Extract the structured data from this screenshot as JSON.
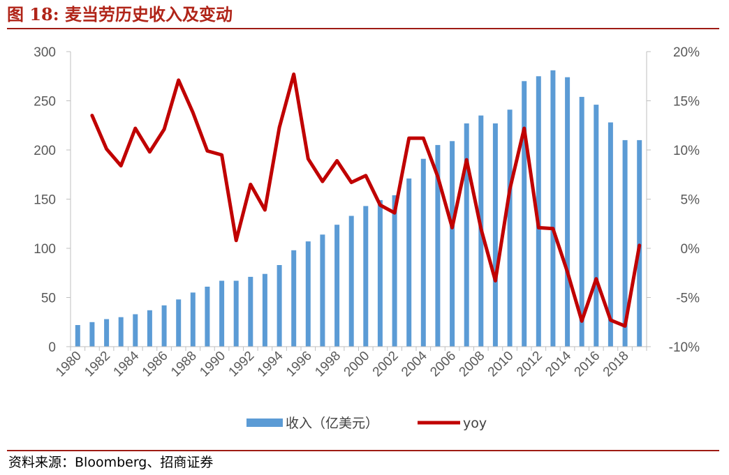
{
  "figure": {
    "title": "图 18:  麦当劳历史收入及变动",
    "source": "资料来源：Bloomberg、招商证券"
  },
  "colors": {
    "bar": "#5b9bd5",
    "line": "#c00000",
    "rule": "#9e1b14",
    "title": "#b02418",
    "axis": "#bfbfbf",
    "tick_text": "#595959"
  },
  "chart_data": {
    "type": "bar+line",
    "categories": [
      "1980",
      "1981",
      "1982",
      "1983",
      "1984",
      "1985",
      "1986",
      "1987",
      "1988",
      "1989",
      "1990",
      "1991",
      "1992",
      "1993",
      "1994",
      "1995",
      "1996",
      "1997",
      "1998",
      "1999",
      "2000",
      "2001",
      "2002",
      "2003",
      "2004",
      "2005",
      "2006",
      "2007",
      "2008",
      "2009",
      "2010",
      "2011",
      "2012",
      "2013",
      "2014",
      "2015",
      "2016",
      "2017",
      "2018",
      "2019"
    ],
    "x_tick_labels": [
      "1980",
      "1982",
      "1984",
      "1986",
      "1988",
      "1990",
      "1992",
      "1994",
      "1996",
      "1998",
      "2000",
      "2002",
      "2004",
      "2006",
      "2008",
      "2010",
      "2012",
      "2014",
      "2016",
      "2018"
    ],
    "series": [
      {
        "name": "收入（亿美元）",
        "type": "bar",
        "axis": "left",
        "values": [
          22,
          25,
          28,
          30,
          33,
          37,
          42,
          48,
          55,
          61,
          67,
          67,
          71,
          74,
          83,
          98,
          107,
          114,
          124,
          133,
          143,
          149,
          154,
          171,
          191,
          205,
          209,
          227,
          235,
          227,
          241,
          270,
          275,
          281,
          274,
          254,
          246,
          228,
          210,
          210
        ]
      },
      {
        "name": "yoy",
        "type": "line",
        "axis": "right",
        "values": [
          null,
          13.5,
          10.1,
          8.4,
          12.2,
          9.8,
          12.1,
          17.1,
          13.8,
          9.9,
          9.5,
          0.8,
          6.5,
          3.9,
          12.3,
          17.7,
          9.1,
          6.8,
          8.9,
          6.7,
          7.4,
          4.4,
          3.6,
          11.2,
          11.2,
          7.3,
          2.1,
          9.0,
          2.0,
          -3.3,
          6.0,
          12.2,
          2.1,
          2.0,
          -2.4,
          -7.4,
          -3.1,
          -7.3,
          -7.9,
          0.3
        ]
      }
    ],
    "y_left": {
      "ticks": [
        "0",
        "50",
        "100",
        "150",
        "200",
        "250",
        "300"
      ],
      "lim": [
        0,
        300
      ]
    },
    "y_right": {
      "ticks": [
        "-10%",
        "-5%",
        "0%",
        "5%",
        "10%",
        "15%",
        "20%"
      ],
      "lim": [
        -10,
        20
      ]
    },
    "legend": {
      "position": "bottom",
      "bar_label": "收入（亿美元）",
      "line_label": "yoy"
    },
    "grid": false
  }
}
